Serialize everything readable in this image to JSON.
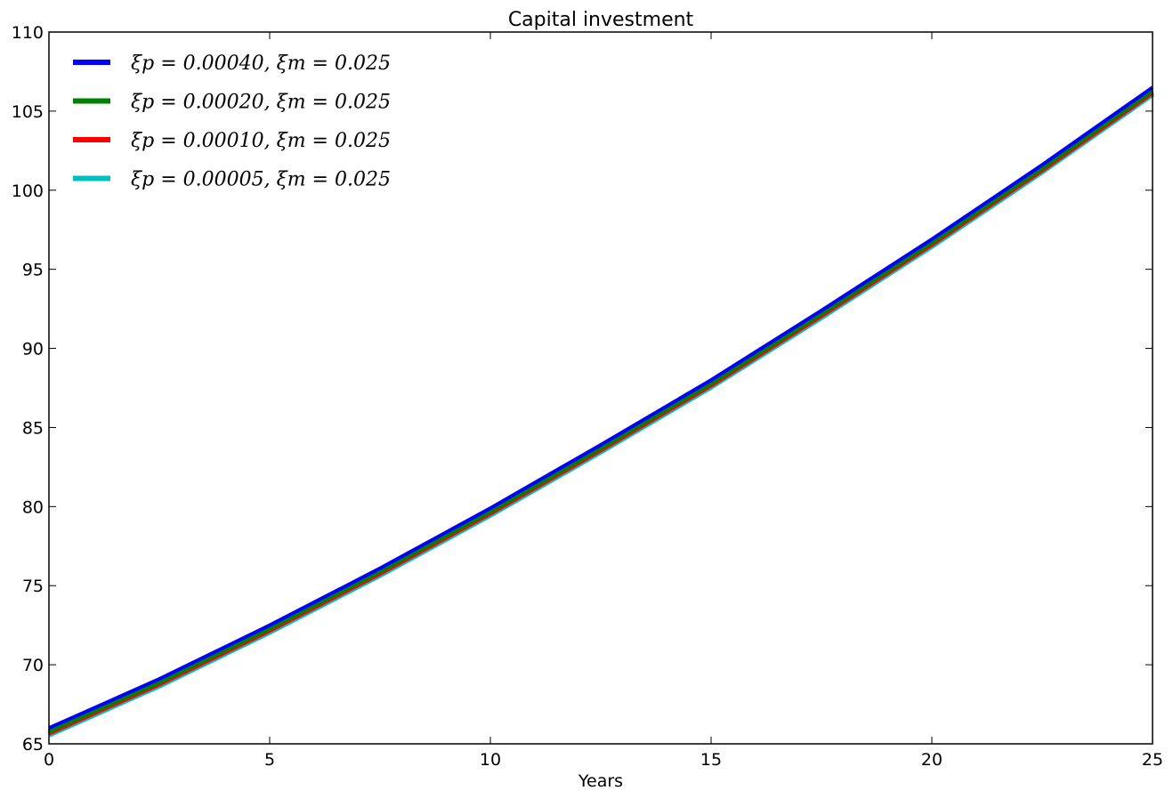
{
  "chart_data": {
    "type": "line",
    "title": "Capital investment",
    "xlabel": "Years",
    "ylabel": "",
    "xlim": [
      0,
      25
    ],
    "ylim": [
      65,
      110
    ],
    "xticks": [
      0,
      5,
      10,
      15,
      20,
      25
    ],
    "yticks": [
      65,
      70,
      75,
      80,
      85,
      90,
      95,
      100,
      105,
      110
    ],
    "grid": false,
    "legend_position": "top-left",
    "x": [
      0,
      2.5,
      5,
      7.5,
      10,
      12.5,
      15,
      17.5,
      20,
      22.5,
      25
    ],
    "series": [
      {
        "name": "ξp = 0.00040, ξm = 0.025",
        "color": "#0000ff",
        "values": [
          66.0,
          69.1,
          72.5,
          76.1,
          79.9,
          83.9,
          88.0,
          92.4,
          96.9,
          101.6,
          106.5
        ]
      },
      {
        "name": "ξp = 0.00020, ξm = 0.025",
        "color": "#008000",
        "values": [
          65.8,
          68.9,
          72.3,
          75.9,
          79.7,
          83.7,
          87.8,
          92.2,
          96.7,
          101.4,
          106.3
        ]
      },
      {
        "name": "ξp = 0.00010, ξm = 0.025",
        "color": "#ff0000",
        "values": [
          65.7,
          68.8,
          72.2,
          75.8,
          79.6,
          83.6,
          87.7,
          92.1,
          96.6,
          101.3,
          106.2
        ]
      },
      {
        "name": "ξp = 0.00005, ξm = 0.025",
        "color": "#00bfbf",
        "values": [
          65.6,
          68.7,
          72.1,
          75.7,
          79.5,
          83.5,
          87.6,
          92.0,
          96.5,
          101.2,
          106.1
        ]
      }
    ]
  }
}
